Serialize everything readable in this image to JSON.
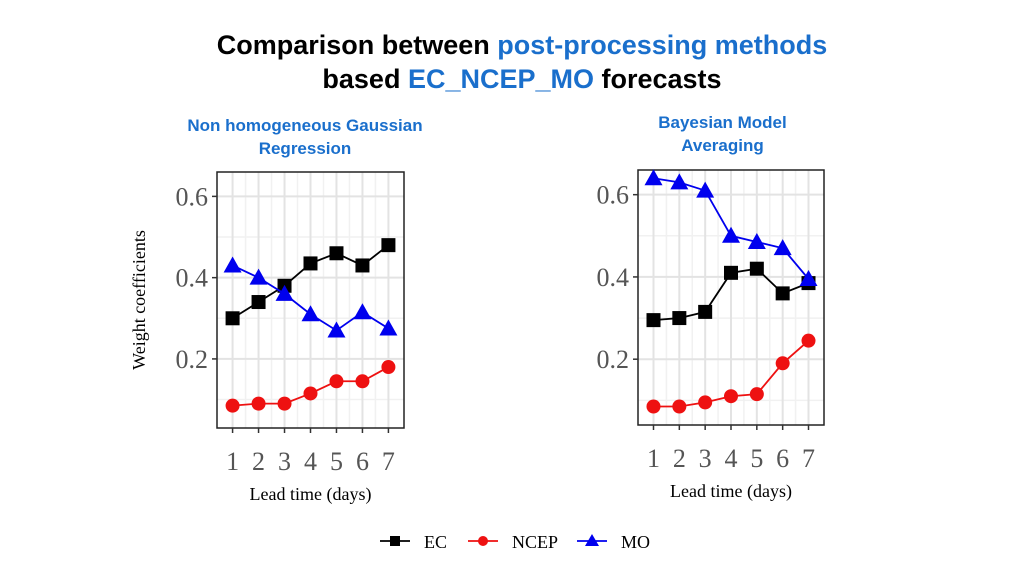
{
  "title": {
    "line1_prefix": "Comparison between ",
    "line1_highlight": "post-processing methods",
    "line2_prefix": "based ",
    "line2_highlight": "EC_NCEP_MO",
    "line2_suffix": " forecasts"
  },
  "colors": {
    "EC": "#000000",
    "NCEP": "#ee1111",
    "MO": "#0000ee",
    "highlight": "#1a6fcc"
  },
  "chart_data": [
    {
      "type": "line",
      "title": "Non homogeneous Gaussian Regression",
      "xlabel": "Lead time (days)",
      "ylabel": "Weight coefficients",
      "x": [
        1,
        2,
        3,
        4,
        5,
        6,
        7
      ],
      "xticks": [
        "1",
        "2",
        "3",
        "4",
        "5",
        "6",
        "7"
      ],
      "ylim": [
        0.03,
        0.66
      ],
      "yticks": [
        0.2,
        0.4,
        0.6
      ],
      "yticklabels": [
        "0.2",
        "0.4",
        "0.6"
      ],
      "grid": true,
      "series": [
        {
          "name": "EC",
          "marker": "square",
          "values": [
            0.3,
            0.34,
            0.38,
            0.435,
            0.46,
            0.43,
            0.48
          ]
        },
        {
          "name": "NCEP",
          "marker": "circle",
          "values": [
            0.085,
            0.09,
            0.09,
            0.115,
            0.145,
            0.145,
            0.18
          ]
        },
        {
          "name": "MO",
          "marker": "triangle",
          "values": [
            0.43,
            0.4,
            0.36,
            0.31,
            0.27,
            0.315,
            0.275
          ]
        }
      ]
    },
    {
      "type": "line",
      "title": "Bayesian Model Averaging",
      "xlabel": "Lead time (days)",
      "ylabel": "",
      "x": [
        1,
        2,
        3,
        4,
        5,
        6,
        7
      ],
      "xticks": [
        "1",
        "2",
        "3",
        "4",
        "5",
        "6",
        "7"
      ],
      "ylim": [
        0.04,
        0.66
      ],
      "yticks": [
        0.2,
        0.4,
        0.6
      ],
      "yticklabels": [
        "0.2",
        "0.4",
        "0.6"
      ],
      "grid": true,
      "series": [
        {
          "name": "EC",
          "marker": "square",
          "values": [
            0.295,
            0.3,
            0.315,
            0.41,
            0.42,
            0.36,
            0.385
          ]
        },
        {
          "name": "NCEP",
          "marker": "circle",
          "values": [
            0.085,
            0.085,
            0.095,
            0.11,
            0.115,
            0.19,
            0.245
          ]
        },
        {
          "name": "MO",
          "marker": "triangle",
          "values": [
            0.64,
            0.63,
            0.61,
            0.5,
            0.485,
            0.47,
            0.395
          ]
        }
      ]
    }
  ],
  "legend": {
    "position": "bottom",
    "items": [
      "EC",
      "NCEP",
      "MO"
    ]
  }
}
